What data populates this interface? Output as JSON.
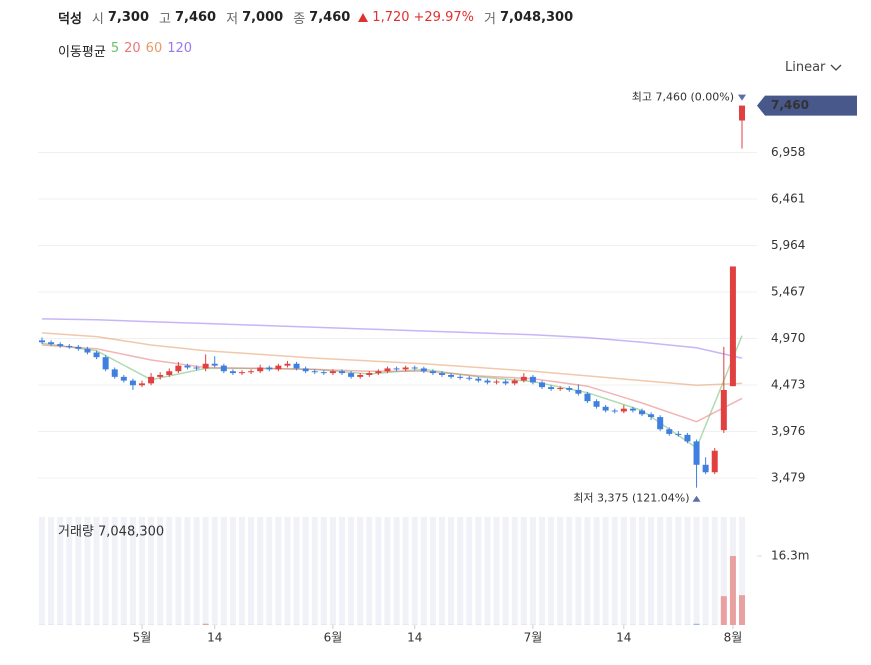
{
  "header": {
    "name": "덕성",
    "open_label": "시",
    "open": "7,300",
    "high_label": "고",
    "high": "7,460",
    "low_label": "저",
    "low": "7,000",
    "close_label": "종",
    "close": "7,460",
    "change": "1,720",
    "change_pct": "+29.97%",
    "volume_label": "거",
    "volume": "7,048,300"
  },
  "ma_title": "이동평균",
  "scale_button": "Linear",
  "chart_data": [
    {
      "type": "candlestick",
      "up_color": "#e0403f",
      "down_color": "#3f7fe0",
      "grid": true,
      "ylim": [
        3190,
        7712
      ],
      "yticks": [
        {
          "value": 3479,
          "label": "3,479"
        },
        {
          "value": 3976,
          "label": "3,976"
        },
        {
          "value": 4473,
          "label": "4,473"
        },
        {
          "value": 4970,
          "label": "4,970"
        },
        {
          "value": 5467,
          "label": "5,467"
        },
        {
          "value": 5964,
          "label": "5,964"
        },
        {
          "value": 6461,
          "label": "6,461"
        },
        {
          "value": 6958,
          "label": "6,958"
        }
      ],
      "xticks": [
        {
          "value": 11,
          "label": "5월"
        },
        {
          "value": 19,
          "label": "14"
        },
        {
          "value": 32,
          "label": "6월"
        },
        {
          "value": 41,
          "label": "14"
        },
        {
          "value": 54,
          "label": "7월"
        },
        {
          "value": 64,
          "label": "14"
        },
        {
          "value": 76,
          "label": "8월"
        }
      ],
      "candles": [
        [
          4950,
          4980,
          4910,
          4930
        ],
        [
          4930,
          4950,
          4890,
          4910
        ],
        [
          4910,
          4930,
          4870,
          4890
        ],
        [
          4890,
          4910,
          4860,
          4880
        ],
        [
          4880,
          4900,
          4840,
          4860
        ],
        [
          4860,
          4880,
          4800,
          4820
        ],
        [
          4820,
          4840,
          4750,
          4770
        ],
        [
          4770,
          4790,
          4620,
          4640
        ],
        [
          4640,
          4660,
          4540,
          4560
        ],
        [
          4560,
          4580,
          4500,
          4520
        ],
        [
          4520,
          4540,
          4420,
          4470
        ],
        [
          4470,
          4520,
          4450,
          4490
        ],
        [
          4490,
          4600,
          4470,
          4560
        ],
        [
          4560,
          4610,
          4530,
          4580
        ],
        [
          4580,
          4650,
          4560,
          4620
        ],
        [
          4620,
          4720,
          4600,
          4680
        ],
        [
          4680,
          4700,
          4640,
          4660
        ],
        [
          4660,
          4680,
          4630,
          4650
        ],
        [
          4650,
          4800,
          4620,
          4700
        ],
        [
          4700,
          4780,
          4660,
          4680
        ],
        [
          4680,
          4700,
          4600,
          4620
        ],
        [
          4620,
          4640,
          4580,
          4600
        ],
        [
          4600,
          4630,
          4580,
          4610
        ],
        [
          4610,
          4640,
          4590,
          4620
        ],
        [
          4620,
          4690,
          4600,
          4660
        ],
        [
          4660,
          4680,
          4620,
          4640
        ],
        [
          4640,
          4700,
          4620,
          4680
        ],
        [
          4680,
          4730,
          4660,
          4700
        ],
        [
          4700,
          4720,
          4630,
          4650
        ],
        [
          4650,
          4670,
          4600,
          4620
        ],
        [
          4620,
          4640,
          4590,
          4610
        ],
        [
          4610,
          4630,
          4580,
          4600
        ],
        [
          4600,
          4640,
          4580,
          4620
        ],
        [
          4620,
          4640,
          4580,
          4600
        ],
        [
          4600,
          4620,
          4540,
          4560
        ],
        [
          4560,
          4600,
          4540,
          4580
        ],
        [
          4580,
          4620,
          4560,
          4600
        ],
        [
          4600,
          4640,
          4580,
          4620
        ],
        [
          4620,
          4670,
          4600,
          4650
        ],
        [
          4650,
          4670,
          4620,
          4640
        ],
        [
          4640,
          4680,
          4620,
          4660
        ],
        [
          4660,
          4680,
          4630,
          4650
        ],
        [
          4650,
          4670,
          4600,
          4620
        ],
        [
          4620,
          4640,
          4580,
          4600
        ],
        [
          4600,
          4620,
          4560,
          4580
        ],
        [
          4580,
          4600,
          4540,
          4560
        ],
        [
          4560,
          4580,
          4530,
          4550
        ],
        [
          4550,
          4570,
          4520,
          4540
        ],
        [
          4540,
          4560,
          4500,
          4520
        ],
        [
          4520,
          4540,
          4480,
          4500
        ],
        [
          4500,
          4530,
          4480,
          4510
        ],
        [
          4510,
          4530,
          4470,
          4490
        ],
        [
          4490,
          4540,
          4470,
          4520
        ],
        [
          4520,
          4600,
          4500,
          4560
        ],
        [
          4560,
          4580,
          4480,
          4500
        ],
        [
          4500,
          4520,
          4430,
          4450
        ],
        [
          4450,
          4470,
          4410,
          4430
        ],
        [
          4430,
          4460,
          4410,
          4440
        ],
        [
          4440,
          4460,
          4400,
          4420
        ],
        [
          4420,
          4480,
          4360,
          4380
        ],
        [
          4380,
          4400,
          4280,
          4300
        ],
        [
          4300,
          4320,
          4220,
          4240
        ],
        [
          4240,
          4260,
          4180,
          4200
        ],
        [
          4200,
          4220,
          4170,
          4190
        ],
        [
          4190,
          4260,
          4170,
          4220
        ],
        [
          4220,
          4240,
          4180,
          4200
        ],
        [
          4200,
          4220,
          4140,
          4160
        ],
        [
          4160,
          4180,
          4100,
          4130
        ],
        [
          4130,
          4150,
          3980,
          4000
        ],
        [
          4000,
          4020,
          3930,
          3950
        ],
        [
          3950,
          3980,
          3920,
          3940
        ],
        [
          3940,
          3960,
          3850,
          3870
        ],
        [
          3870,
          3890,
          3375,
          3620
        ],
        [
          3620,
          3700,
          3520,
          3540
        ],
        [
          3540,
          3800,
          3520,
          3770
        ],
        [
          3990,
          4880,
          3960,
          4420
        ],
        [
          4460,
          5740,
          4460,
          5740
        ],
        [
          7300,
          7460,
          7000,
          7460
        ]
      ],
      "series": [
        {
          "name": "5",
          "color": "#6cbf6c",
          "x": [
            0,
            6,
            12,
            18,
            24,
            30,
            36,
            42,
            48,
            54,
            60,
            66,
            72,
            77
          ],
          "values": [
            4920,
            4840,
            4530,
            4650,
            4650,
            4640,
            4590,
            4640,
            4560,
            4510,
            4390,
            4200,
            3800,
            5000
          ]
        },
        {
          "name": "20",
          "color": "#e87878",
          "x": [
            0,
            6,
            12,
            18,
            24,
            30,
            36,
            42,
            48,
            54,
            60,
            66,
            72,
            77
          ],
          "values": [
            4900,
            4860,
            4740,
            4660,
            4650,
            4640,
            4620,
            4620,
            4570,
            4540,
            4460,
            4280,
            4080,
            4330
          ]
        },
        {
          "name": "60",
          "color": "#e89a66",
          "x": [
            0,
            6,
            12,
            18,
            24,
            30,
            36,
            42,
            48,
            54,
            60,
            66,
            72,
            77
          ],
          "values": [
            5030,
            4990,
            4900,
            4840,
            4800,
            4760,
            4730,
            4700,
            4660,
            4620,
            4570,
            4520,
            4470,
            4490
          ]
        },
        {
          "name": "120",
          "color": "#9a78ee",
          "x": [
            0,
            6,
            12,
            18,
            24,
            30,
            36,
            42,
            48,
            54,
            60,
            66,
            72,
            77
          ],
          "values": [
            5180,
            5170,
            5150,
            5130,
            5110,
            5090,
            5070,
            5050,
            5030,
            5010,
            4980,
            4930,
            4870,
            4760
          ]
        }
      ],
      "max_label": "최고 7,460 (0.00%)",
      "min_label": "최저 3,375 (121.04%)",
      "last_price": "7,460"
    },
    {
      "type": "bar",
      "title": "거래량 7,048,300",
      "color": "#e8a0a0",
      "ylim": [
        0,
        25500000
      ],
      "yticks": [
        {
          "value": 16300000,
          "label": "16.3m"
        }
      ],
      "values": [
        40000,
        40000,
        40000,
        40000,
        40000,
        40000,
        40000,
        40000,
        40000,
        40000,
        40000,
        40000,
        40000,
        40000,
        40000,
        40000,
        40000,
        40000,
        300000,
        40000,
        40000,
        40000,
        40000,
        40000,
        40000,
        40000,
        40000,
        40000,
        40000,
        40000,
        40000,
        40000,
        40000,
        40000,
        40000,
        40000,
        40000,
        40000,
        40000,
        40000,
        40000,
        40000,
        40000,
        40000,
        40000,
        40000,
        40000,
        40000,
        40000,
        40000,
        40000,
        40000,
        40000,
        40000,
        40000,
        40000,
        40000,
        40000,
        40000,
        40000,
        40000,
        40000,
        40000,
        40000,
        40000,
        40000,
        40000,
        40000,
        40000,
        40000,
        40000,
        40000,
        300000,
        40000,
        40000,
        6800000,
        16300000,
        7048300
      ]
    }
  ]
}
